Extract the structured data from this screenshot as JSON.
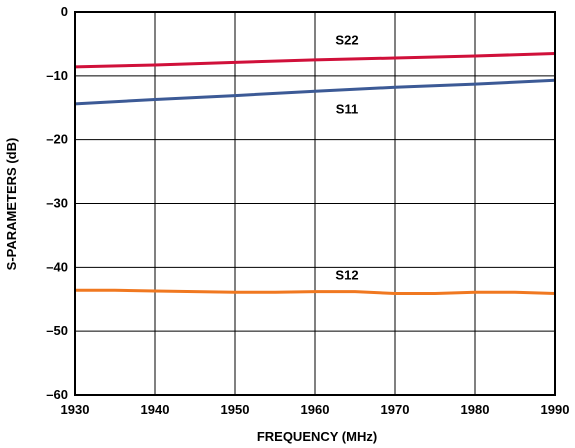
{
  "chart_data": {
    "type": "line",
    "xlabel": "FREQUENCY (MHz)",
    "ylabel": "S-PARAMETERS (dB)",
    "xlim": [
      1930,
      1990
    ],
    "ylim": [
      -60,
      0
    ],
    "x_ticks": [
      1930,
      1940,
      1950,
      1960,
      1970,
      1980,
      1990
    ],
    "y_ticks": [
      0,
      -10,
      -20,
      -30,
      -40,
      -50,
      -60
    ],
    "x_tick_labels": [
      "1930",
      "1940",
      "1950",
      "1960",
      "1970",
      "1980",
      "1990"
    ],
    "y_tick_labels": [
      "0",
      "–10",
      "–20",
      "–30",
      "–40",
      "–50",
      "–60"
    ],
    "grid": true,
    "series": [
      {
        "name": "S22",
        "color": "#d0103a",
        "x": [
          1930,
          1940,
          1950,
          1960,
          1970,
          1980,
          1990
        ],
        "values": [
          -8.6,
          -8.3,
          -7.9,
          -7.5,
          -7.2,
          -6.9,
          -6.5
        ],
        "label_x": 1964,
        "label_y": -4.5
      },
      {
        "name": "S11",
        "color": "#3c5a96",
        "x": [
          1930,
          1940,
          1950,
          1960,
          1970,
          1980,
          1990
        ],
        "values": [
          -14.4,
          -13.7,
          -13.1,
          -12.4,
          -11.8,
          -11.3,
          -10.7
        ],
        "label_x": 1964,
        "label_y": -15.3
      },
      {
        "name": "S12",
        "color": "#f07820",
        "x": [
          1930,
          1935,
          1940,
          1945,
          1950,
          1955,
          1960,
          1965,
          1970,
          1975,
          1980,
          1985,
          1990
        ],
        "values": [
          -43.6,
          -43.6,
          -43.7,
          -43.8,
          -43.9,
          -43.9,
          -43.8,
          -43.8,
          -44.1,
          -44.1,
          -43.9,
          -43.9,
          -44.1
        ],
        "label_x": 1964,
        "label_y": -41.3
      }
    ]
  }
}
